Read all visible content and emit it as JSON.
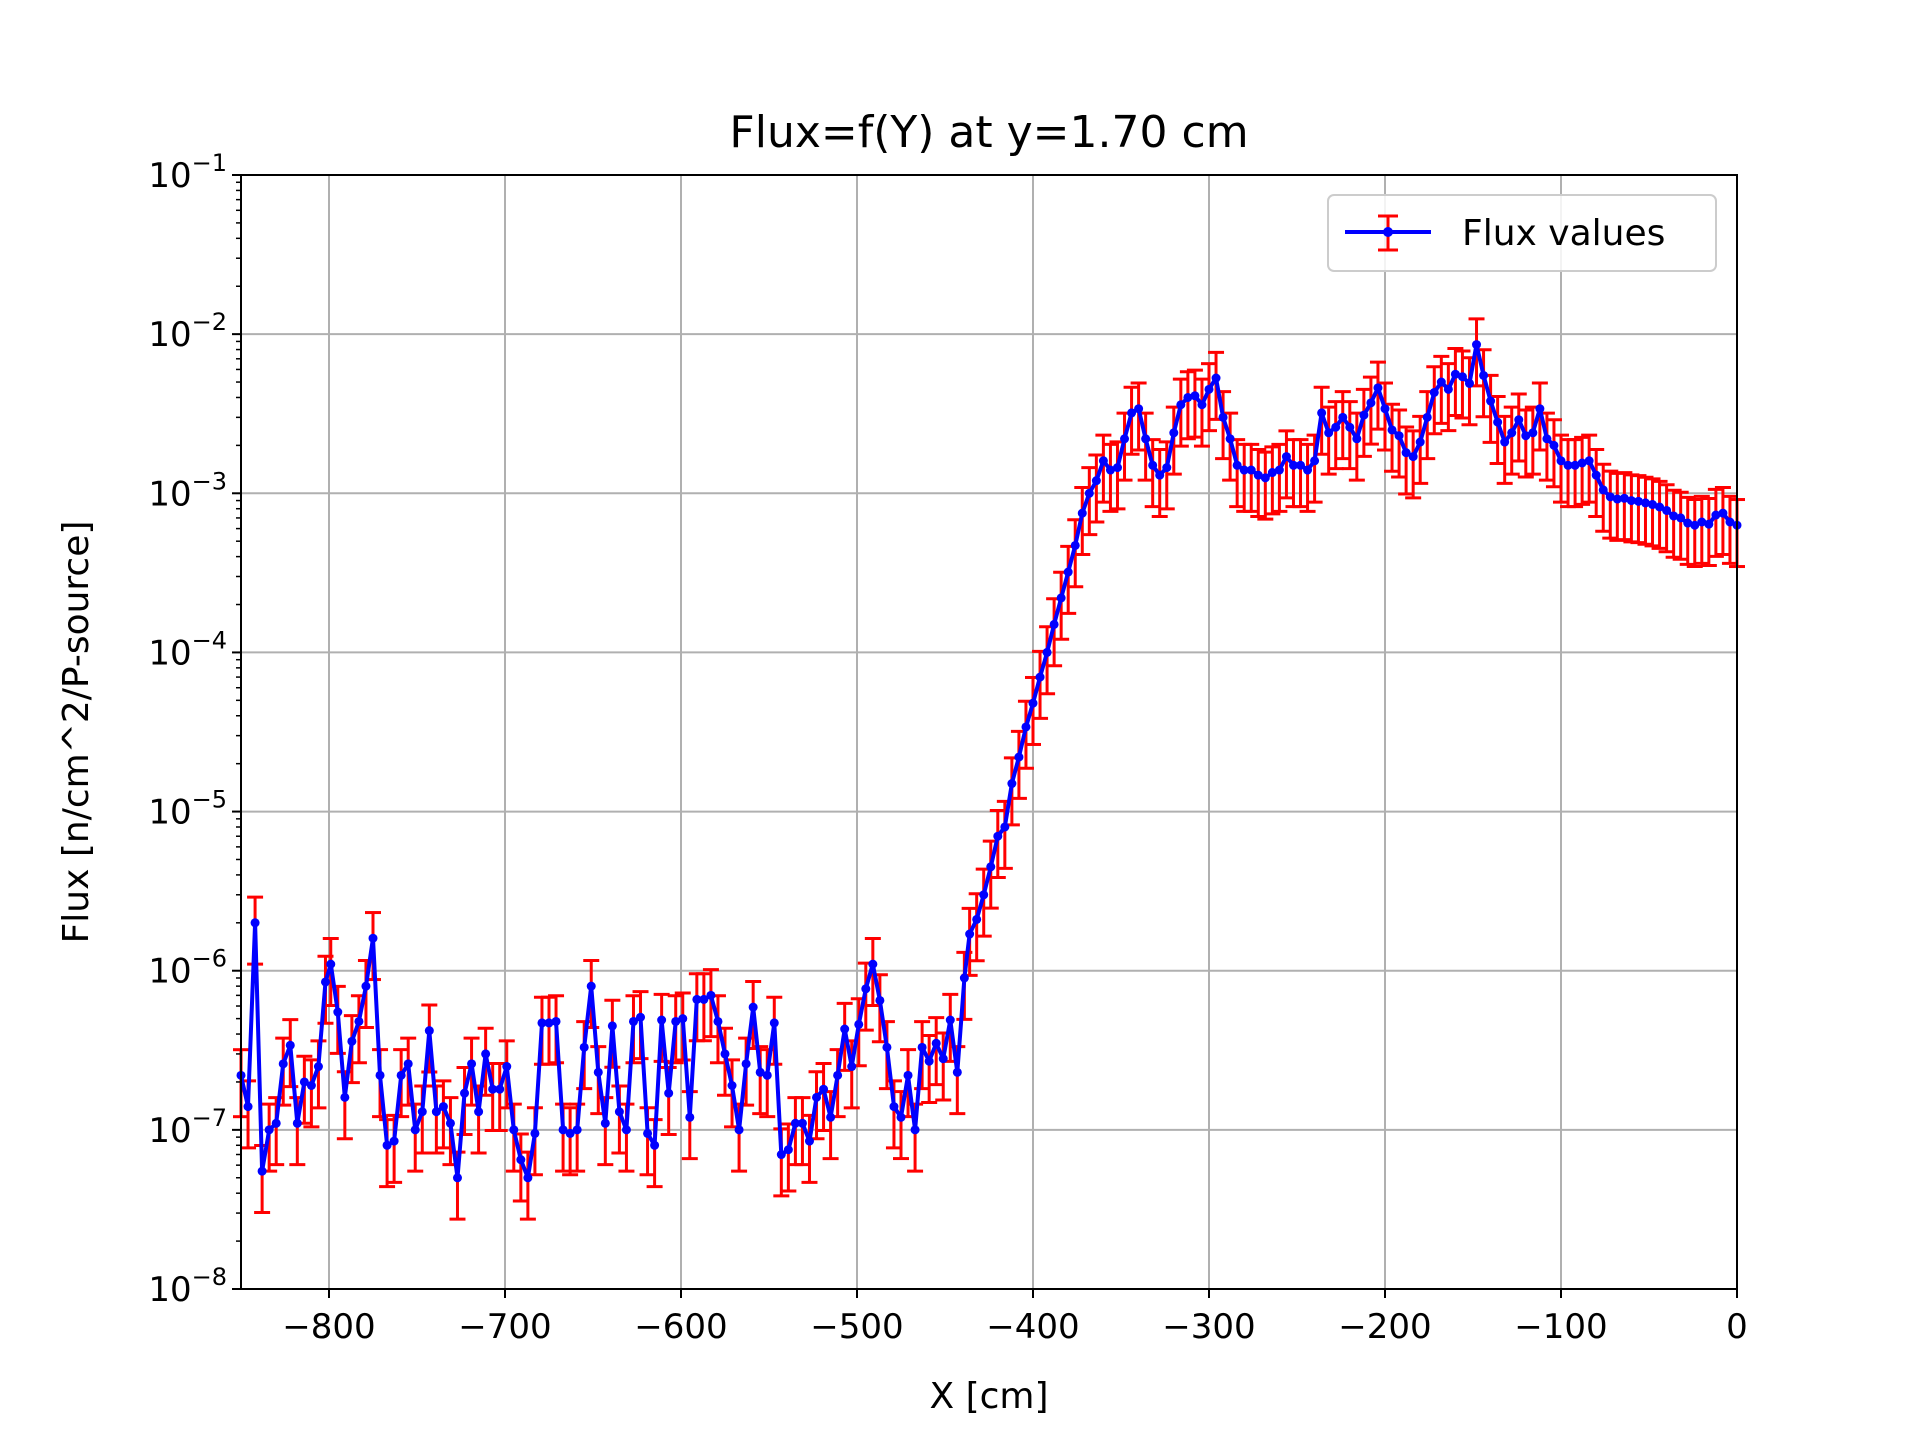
{
  "chart_data": {
    "type": "line",
    "title": "Flux=f(Y) at y=1.70 cm",
    "xlabel": "X [cm]",
    "ylabel": "Flux [n/cm^2/P-source]",
    "xscale": "linear",
    "yscale": "log",
    "xlim": [
      -850,
      0
    ],
    "ylim": [
      1e-08,
      0.1
    ],
    "grid": true,
    "legend_placement": "top-right",
    "x_ticks": [
      "−800",
      "−700",
      "−600",
      "−500",
      "−400",
      "−300",
      "−200",
      "−100",
      "0"
    ],
    "y_ticks": [
      {
        "base": "10",
        "exp": "−8",
        "value": 1e-08
      },
      {
        "base": "10",
        "exp": "−7",
        "value": 1e-07
      },
      {
        "base": "10",
        "exp": "−6",
        "value": 1e-06
      },
      {
        "base": "10",
        "exp": "−5",
        "value": 1e-05
      },
      {
        "base": "10",
        "exp": "−4",
        "value": 0.0001
      },
      {
        "base": "10",
        "exp": "−3",
        "value": 0.001
      },
      {
        "base": "10",
        "exp": "−2",
        "value": 0.01
      },
      {
        "base": "10",
        "exp": "−1",
        "value": 0.1
      }
    ],
    "colors": {
      "line": "#0000ff",
      "errorbar": "#ff0000",
      "grid": "#b0b0b0"
    },
    "series": [
      {
        "name": "Flux values",
        "points": [
          [
            -850,
            2.2e-07
          ],
          [
            -846,
            1.4e-07
          ],
          [
            -842,
            2e-06
          ],
          [
            -838,
            5.5e-08
          ],
          [
            -834,
            1e-07
          ],
          [
            -830,
            1.1e-07
          ],
          [
            -826,
            2.6e-07
          ],
          [
            -822,
            3.4e-07
          ],
          [
            -818,
            1.1e-07
          ],
          [
            -814,
            2e-07
          ],
          [
            -810,
            1.9e-07
          ],
          [
            -806,
            2.5e-07
          ],
          [
            -802,
            8.5e-07
          ],
          [
            -799,
            1.1e-06
          ],
          [
            -795,
            5.5e-07
          ],
          [
            -791,
            1.6e-07
          ],
          [
            -787,
            3.6e-07
          ],
          [
            -783,
            4.8e-07
          ],
          [
            -779,
            8e-07
          ],
          [
            -775,
            1.6e-06
          ],
          [
            -771,
            2.2e-07
          ],
          [
            -767,
            8e-08
          ],
          [
            -763,
            8.5e-08
          ],
          [
            -759,
            2.2e-07
          ],
          [
            -755,
            2.6e-07
          ],
          [
            -751,
            1e-07
          ],
          [
            -747,
            1.3e-07
          ],
          [
            -743,
            4.2e-07
          ],
          [
            -739,
            1.3e-07
          ],
          [
            -735,
            1.4e-07
          ],
          [
            -731,
            1.1e-07
          ],
          [
            -727,
            5e-08
          ],
          [
            -723,
            1.7e-07
          ],
          [
            -719,
            2.6e-07
          ],
          [
            -715,
            1.3e-07
          ],
          [
            -711,
            3e-07
          ],
          [
            -707,
            1.8e-07
          ],
          [
            -703,
            1.8e-07
          ],
          [
            -699,
            2.5e-07
          ],
          [
            -695,
            1e-07
          ],
          [
            -691,
            6.5e-08
          ],
          [
            -687,
            5e-08
          ],
          [
            -683,
            9.5e-08
          ],
          [
            -679,
            4.7e-07
          ],
          [
            -675,
            4.7e-07
          ],
          [
            -671,
            4.8e-07
          ],
          [
            -667,
            1e-07
          ],
          [
            -663,
            9.5e-08
          ],
          [
            -659,
            1e-07
          ],
          [
            -655,
            3.3e-07
          ],
          [
            -651,
            8e-07
          ],
          [
            -647,
            2.3e-07
          ],
          [
            -643,
            1.1e-07
          ],
          [
            -639,
            4.5e-07
          ],
          [
            -635,
            1.3e-07
          ],
          [
            -631,
            1e-07
          ],
          [
            -627,
            4.8e-07
          ],
          [
            -623,
            5.1e-07
          ],
          [
            -619,
            9.5e-08
          ],
          [
            -615,
            8e-08
          ],
          [
            -611,
            4.9e-07
          ],
          [
            -607,
            1.7e-07
          ],
          [
            -603,
            4.8e-07
          ],
          [
            -599,
            5e-07
          ],
          [
            -595,
            1.2e-07
          ],
          [
            -591,
            6.6e-07
          ],
          [
            -587,
            6.6e-07
          ],
          [
            -583,
            7e-07
          ],
          [
            -579,
            4.8e-07
          ],
          [
            -575,
            3e-07
          ],
          [
            -571,
            1.9e-07
          ],
          [
            -567,
            1e-07
          ],
          [
            -563,
            2.6e-07
          ],
          [
            -559,
            5.9e-07
          ],
          [
            -555,
            2.3e-07
          ],
          [
            -551,
            2.2e-07
          ],
          [
            -547,
            4.7e-07
          ],
          [
            -543,
            7e-08
          ],
          [
            -539,
            7.5e-08
          ],
          [
            -535,
            1.1e-07
          ],
          [
            -531,
            1.1e-07
          ],
          [
            -527,
            8.5e-08
          ],
          [
            -523,
            1.6e-07
          ],
          [
            -519,
            1.8e-07
          ],
          [
            -515,
            1.2e-07
          ],
          [
            -511,
            2.2e-07
          ],
          [
            -507,
            4.3e-07
          ],
          [
            -503,
            2.5e-07
          ],
          [
            -499,
            4.6e-07
          ],
          [
            -495,
            7.7e-07
          ],
          [
            -491,
            1.1e-06
          ],
          [
            -487,
            6.5e-07
          ],
          [
            -483,
            3.3e-07
          ],
          [
            -479,
            1.4e-07
          ],
          [
            -475,
            1.2e-07
          ],
          [
            -471,
            2.2e-07
          ],
          [
            -467,
            1e-07
          ],
          [
            -463,
            3.3e-07
          ],
          [
            -459,
            2.7e-07
          ],
          [
            -455,
            3.5e-07
          ],
          [
            -451,
            2.8e-07
          ],
          [
            -447,
            4.9e-07
          ],
          [
            -443,
            2.3e-07
          ],
          [
            -439,
            9e-07
          ],
          [
            -436,
            1.7e-06
          ],
          [
            -432,
            2.1e-06
          ],
          [
            -428,
            3e-06
          ],
          [
            -424,
            4.5e-06
          ],
          [
            -420,
            7e-06
          ],
          [
            -416,
            8e-06
          ],
          [
            -412,
            1.5e-05
          ],
          [
            -408,
            2.2e-05
          ],
          [
            -404,
            3.4e-05
          ],
          [
            -400,
            4.8e-05
          ],
          [
            -396,
            7e-05
          ],
          [
            -392,
            0.0001
          ],
          [
            -388,
            0.00015
          ],
          [
            -384,
            0.00022
          ],
          [
            -380,
            0.00032
          ],
          [
            -376,
            0.00047
          ],
          [
            -372,
            0.00075
          ],
          [
            -368,
            0.001
          ],
          [
            -364,
            0.0012
          ],
          [
            -360,
            0.0016
          ],
          [
            -356,
            0.0014
          ],
          [
            -352,
            0.00145
          ],
          [
            -348,
            0.0022
          ],
          [
            -344,
            0.0032
          ],
          [
            -340,
            0.0034
          ],
          [
            -336,
            0.0022
          ],
          [
            -332,
            0.0015
          ],
          [
            -328,
            0.0013
          ],
          [
            -324,
            0.00145
          ],
          [
            -320,
            0.0024
          ],
          [
            -316,
            0.0036
          ],
          [
            -312,
            0.004
          ],
          [
            -308,
            0.0041
          ],
          [
            -304,
            0.0036
          ],
          [
            -300,
            0.0045
          ],
          [
            -296,
            0.0053
          ],
          [
            -292,
            0.003
          ],
          [
            -288,
            0.0022
          ],
          [
            -284,
            0.0015
          ],
          [
            -280,
            0.0014
          ],
          [
            -276,
            0.0014
          ],
          [
            -272,
            0.0013
          ],
          [
            -268,
            0.00125
          ],
          [
            -264,
            0.00135
          ],
          [
            -260,
            0.0014
          ],
          [
            -256,
            0.0017
          ],
          [
            -252,
            0.0015
          ],
          [
            -248,
            0.0015
          ],
          [
            -244,
            0.0014
          ],
          [
            -240,
            0.0016
          ],
          [
            -236,
            0.0032
          ],
          [
            -232,
            0.0024
          ],
          [
            -228,
            0.0026
          ],
          [
            -224,
            0.003
          ],
          [
            -220,
            0.0026
          ],
          [
            -216,
            0.0022
          ],
          [
            -212,
            0.0031
          ],
          [
            -208,
            0.0037
          ],
          [
            -204,
            0.0046
          ],
          [
            -200,
            0.0034
          ],
          [
            -196,
            0.0025
          ],
          [
            -192,
            0.0023
          ],
          [
            -188,
            0.0018
          ],
          [
            -184,
            0.0017
          ],
          [
            -180,
            0.0021
          ],
          [
            -176,
            0.003
          ],
          [
            -172,
            0.0043
          ],
          [
            -168,
            0.005
          ],
          [
            -164,
            0.0045
          ],
          [
            -160,
            0.0056
          ],
          [
            -156,
            0.0054
          ],
          [
            -152,
            0.0049
          ],
          [
            -148,
            0.0086
          ],
          [
            -144,
            0.0055
          ],
          [
            -140,
            0.0038
          ],
          [
            -136,
            0.0028
          ],
          [
            -132,
            0.0021
          ],
          [
            -128,
            0.0024
          ],
          [
            -124,
            0.0029
          ],
          [
            -120,
            0.0023
          ],
          [
            -116,
            0.0024
          ],
          [
            -112,
            0.0034
          ],
          [
            -108,
            0.0022
          ],
          [
            -104,
            0.002
          ],
          [
            -100,
            0.0016
          ],
          [
            -96,
            0.0015
          ],
          [
            -92,
            0.0015
          ],
          [
            -88,
            0.00155
          ],
          [
            -84,
            0.0016
          ],
          [
            -80,
            0.0013
          ],
          [
            -76,
            0.00105
          ],
          [
            -72,
            0.00095
          ],
          [
            -68,
            0.00092
          ],
          [
            -64,
            0.00093
          ],
          [
            -60,
            0.0009
          ],
          [
            -56,
            0.00089
          ],
          [
            -52,
            0.00087
          ],
          [
            -48,
            0.00085
          ],
          [
            -44,
            0.00082
          ],
          [
            -40,
            0.00078
          ],
          [
            -36,
            0.00072
          ],
          [
            -32,
            0.0007
          ],
          [
            -28,
            0.00065
          ],
          [
            -24,
            0.00063
          ],
          [
            -20,
            0.00066
          ],
          [
            -16,
            0.00064
          ],
          [
            -12,
            0.00073
          ],
          [
            -8,
            0.00075
          ],
          [
            -4,
            0.00066
          ],
          [
            0,
            0.00063
          ]
        ],
        "rel_error": 0.45
      }
    ]
  }
}
